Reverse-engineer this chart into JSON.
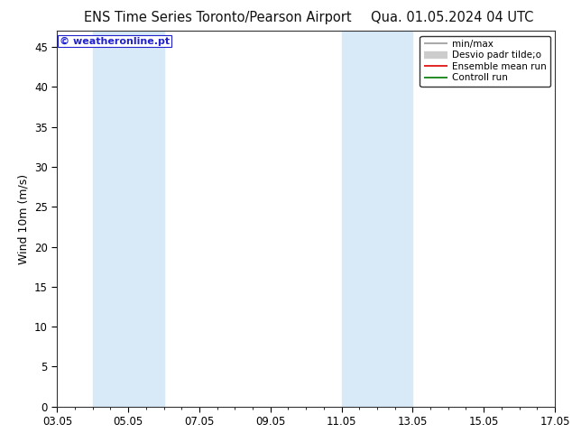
{
  "title_left": "ENS Time Series Toronto/Pearson Airport",
  "title_right": "Qua. 01.05.2024 04 UTC",
  "ylabel": "Wind 10m (m/s)",
  "watermark": "© weatheronline.pt",
  "ylim": [
    0,
    47
  ],
  "yticks": [
    0,
    5,
    10,
    15,
    20,
    25,
    30,
    35,
    40,
    45
  ],
  "xlim": [
    0,
    14
  ],
  "x_tick_labels": [
    "03.05",
    "05.05",
    "07.05",
    "09.05",
    "11.05",
    "13.05",
    "15.05",
    "17.05"
  ],
  "x_tick_positions": [
    0,
    2,
    4,
    6,
    8,
    10,
    12,
    14
  ],
  "shaded_bands": [
    {
      "start": 1.0,
      "end": 3.0
    },
    {
      "start": 8.0,
      "end": 10.0
    }
  ],
  "shade_color": "#d8eaf8",
  "background_color": "#ffffff",
  "legend_items": [
    {
      "label": "min/max",
      "color": "#aaaaaa",
      "lw": 1.5
    },
    {
      "label": "Desvio padr tilde;o",
      "color": "#cccccc",
      "lw": 6
    },
    {
      "label": "Ensemble mean run",
      "color": "#dd0000",
      "lw": 1.2
    },
    {
      "label": "Controll run",
      "color": "#007700",
      "lw": 1.2
    }
  ],
  "title_fontsize": 10.5,
  "tick_fontsize": 8.5,
  "ylabel_fontsize": 9,
  "watermark_color": "#2222cc",
  "watermark_fontsize": 8,
  "legend_fontsize": 7.5
}
